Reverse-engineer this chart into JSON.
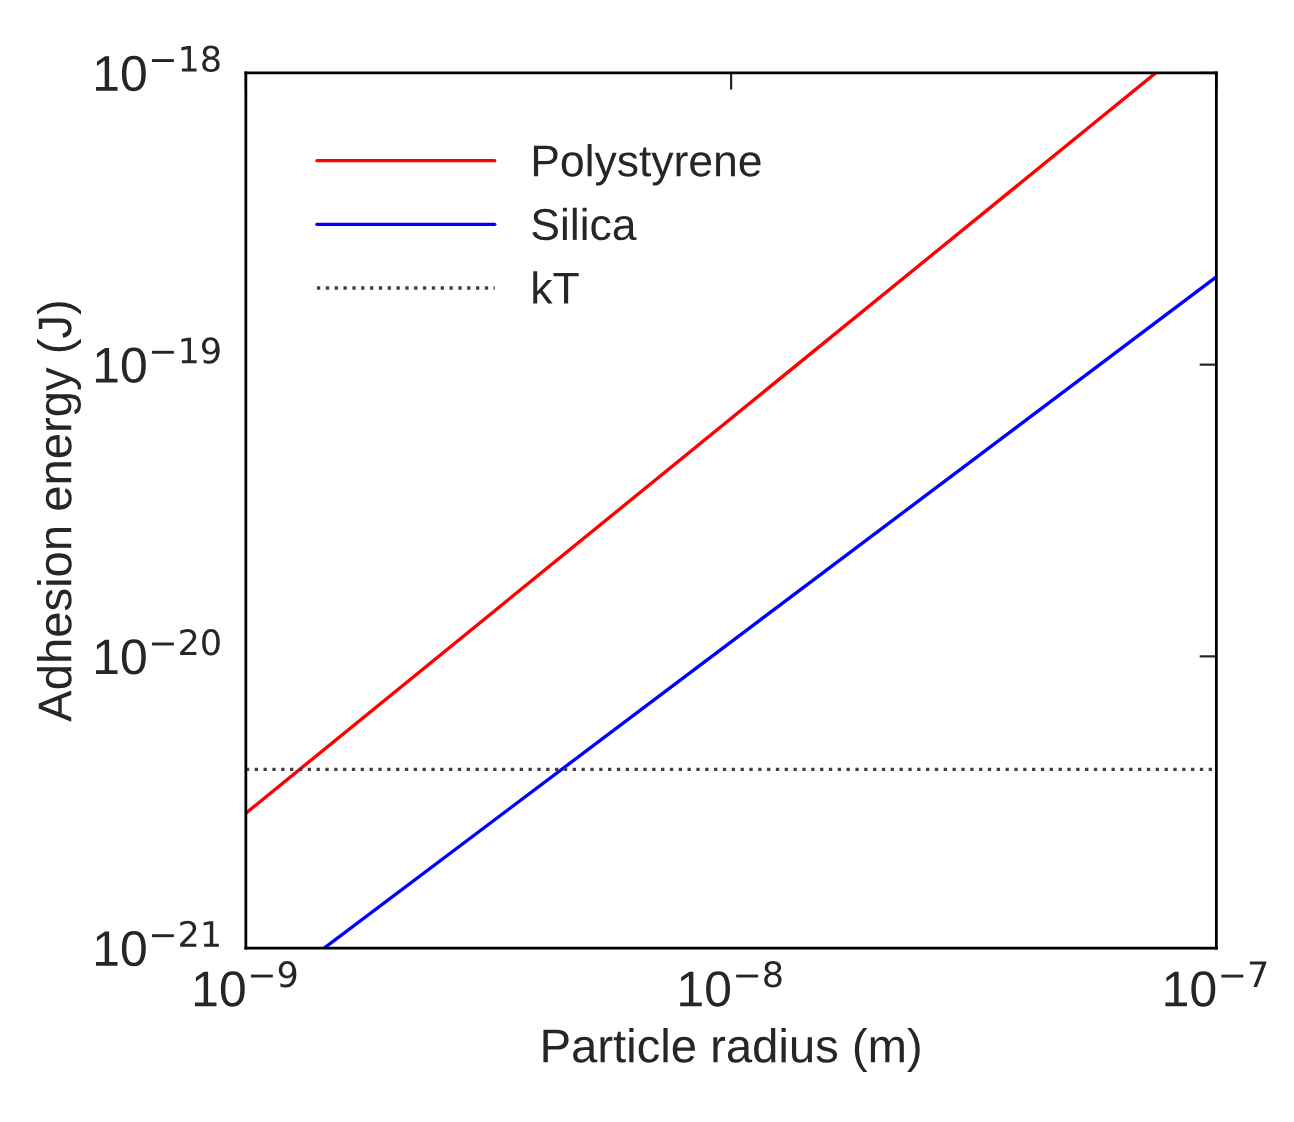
{
  "chart_data": {
    "type": "line",
    "xlabel": "Particle radius (m)",
    "ylabel": "Adhesion energy (J)",
    "log": "xy",
    "grid": false,
    "legend": "top left",
    "xlim": [
      1e-09,
      1e-07
    ],
    "ylim": [
      1e-21,
      1e-18
    ],
    "xticks": [
      {
        "value": 1e-09,
        "label": "10$^{−9}$"
      },
      {
        "value": 1e-08,
        "label": "10$^{−8}$"
      },
      {
        "value": 1e-07,
        "label": "10$^{−7}$"
      }
    ],
    "yticks": [
      {
        "value": 1e-21,
        "label": "10$^{−21}$"
      },
      {
        "value": 1e-20,
        "label": "10$^{−20}$"
      },
      {
        "value": 1e-19,
        "label": "10$^{−19}$"
      },
      {
        "value": 1e-18,
        "label": "10$^{−18}$"
      }
    ],
    "series": [
      {
        "name": "Polystyrene",
        "color": "#ff0000",
        "x": [
          1e-09,
          7.5e-08
        ],
        "values": [
          2.9e-21,
          1e-18
        ],
        "line_style": "solid"
      },
      {
        "name": "Silica",
        "color": "#0000ff",
        "x": [
          1.45e-09,
          1e-07
        ],
        "values": [
          1e-21,
          2e-19
        ],
        "line_style": "solid"
      },
      {
        "name": "kT",
        "color": "#404040",
        "x": [
          1e-09,
          1e-07
        ],
        "values": [
          4.1e-21,
          4.1e-21
        ],
        "line_style": "dotted"
      }
    ]
  }
}
